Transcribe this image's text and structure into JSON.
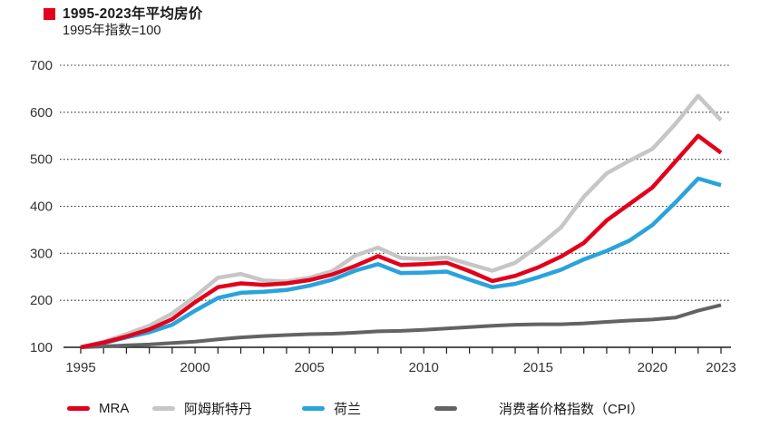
{
  "header": {
    "title": "1995-2023年平均房价",
    "subtitle": "1995年指数=100",
    "accent_color": "#e2001a"
  },
  "legend": {
    "items": [
      {
        "label": "MRA",
        "color": "#e2001a"
      },
      {
        "label": "阿姆斯特丹",
        "color": "#c6c6c6"
      },
      {
        "label": "荷兰",
        "color": "#29a3dc"
      },
      {
        "label": "消费者价格指数（CPI）",
        "color": "#636363"
      }
    ]
  },
  "chart_data": {
    "type": "line",
    "title": "1995-2023年平均房价",
    "subtitle": "1995年指数=100",
    "x": [
      1995,
      1996,
      1997,
      1998,
      1999,
      2000,
      2001,
      2002,
      2003,
      2004,
      2005,
      2006,
      2007,
      2008,
      2009,
      2010,
      2011,
      2012,
      2013,
      2014,
      2015,
      2016,
      2017,
      2018,
      2019,
      2020,
      2021,
      2022,
      2023
    ],
    "x_tick_years": [
      1995,
      2000,
      2005,
      2010,
      2015,
      2020,
      2023
    ],
    "x_tick_labels": [
      "1995",
      "2000",
      "2005",
      "2010",
      "2015",
      "2020",
      "2023"
    ],
    "y_ticks": [
      100,
      200,
      300,
      400,
      500,
      600,
      700
    ],
    "y_tick_labels": [
      "100",
      "200",
      "300",
      "400",
      "500",
      "600",
      "700"
    ],
    "ylim": [
      100,
      700
    ],
    "grid": "horizontal-dotted",
    "legend_position": "bottom",
    "axis_text_color": "#333333",
    "series": [
      {
        "name": "MRA",
        "color": "#e2001a",
        "values": [
          100,
          110,
          123,
          138,
          160,
          196,
          228,
          236,
          233,
          236,
          243,
          255,
          273,
          294,
          275,
          277,
          280,
          262,
          241,
          252,
          270,
          293,
          322,
          370,
          405,
          440,
          495,
          550,
          514
        ]
      },
      {
        "name": "阿姆斯特丹",
        "color": "#c6c6c6",
        "values": [
          100,
          112,
          128,
          146,
          172,
          208,
          248,
          256,
          242,
          240,
          248,
          262,
          295,
          312,
          290,
          288,
          291,
          277,
          263,
          280,
          315,
          355,
          420,
          470,
          497,
          522,
          575,
          635,
          583
        ]
      },
      {
        "name": "荷兰",
        "color": "#29a3dc",
        "values": [
          100,
          109,
          121,
          132,
          148,
          178,
          205,
          216,
          218,
          222,
          231,
          244,
          263,
          277,
          258,
          259,
          261,
          244,
          228,
          235,
          249,
          265,
          287,
          305,
          327,
          360,
          408,
          459,
          445
        ]
      },
      {
        "name": "消费者价格指数（CPI）",
        "color": "#636363",
        "values": [
          100,
          102,
          104,
          106,
          109,
          112,
          117,
          121,
          124,
          126,
          128,
          129,
          131,
          134,
          135,
          137,
          140,
          143,
          146,
          148,
          149,
          149,
          151,
          154,
          157,
          159,
          163,
          178,
          190
        ]
      }
    ]
  }
}
